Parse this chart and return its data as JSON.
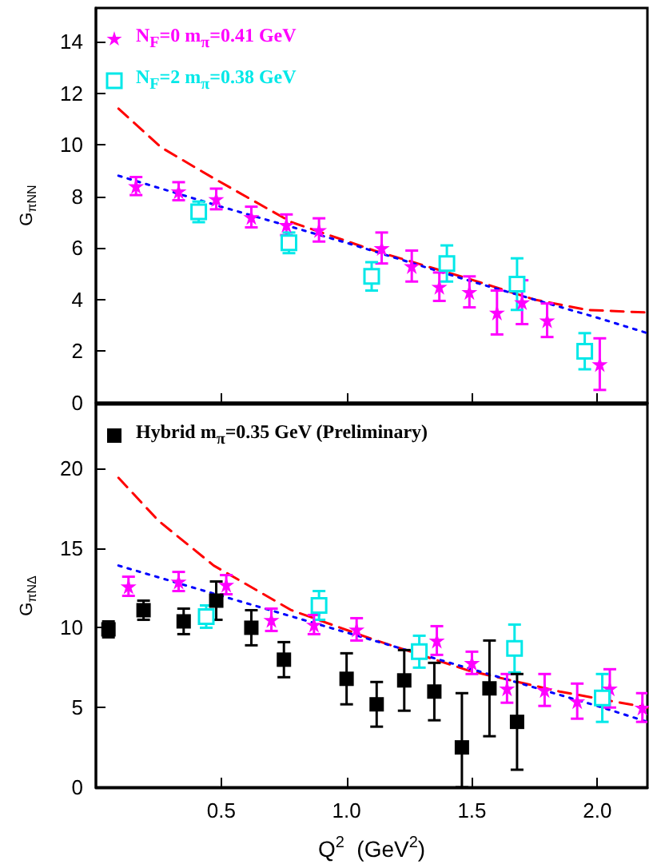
{
  "chart_data": [
    {
      "type": "scatter",
      "ylabel": "G$_{πNN}$",
      "xlim": [
        0,
        2.2
      ],
      "ylim": [
        0,
        15.3
      ],
      "xticks": [
        0.5,
        1,
        1.5,
        2
      ],
      "yticks": [
        0,
        2,
        4,
        6,
        8,
        10,
        12,
        14
      ],
      "tick_labels": "y",
      "legend": "top left",
      "series": [
        {
          "name": "N$_{F}$=0  m$_{π}$=0.41 GeV",
          "type": "scatter",
          "marker": "star",
          "color": "#ff00ff",
          "x": [
            0.16,
            0.33,
            0.48,
            0.62,
            0.76,
            0.89,
            1.14,
            1.26,
            1.37,
            1.49,
            1.6,
            1.7,
            1.8,
            2.01
          ],
          "values": [
            8.4,
            8.2,
            7.9,
            7.2,
            6.9,
            6.7,
            6.0,
            5.3,
            4.5,
            4.3,
            3.5,
            3.9,
            3.2,
            1.5
          ],
          "errors": [
            0.35,
            0.35,
            0.4,
            0.4,
            0.4,
            0.45,
            0.6,
            0.6,
            0.55,
            0.6,
            0.85,
            0.85,
            0.65,
            1.0
          ]
        },
        {
          "name": "N$_{F}$=2  m$_{π}$=0.38 GeV",
          "type": "scatter",
          "marker": "square",
          "color": "#00e8e8",
          "x": [
            0.41,
            0.77,
            1.1,
            1.4,
            1.68,
            1.95
          ],
          "values": [
            7.4,
            6.2,
            4.9,
            5.4,
            4.6,
            2.0
          ],
          "errors": [
            0.4,
            0.4,
            0.55,
            0.7,
            1.0,
            0.7
          ]
        },
        {
          "type": "line",
          "line_style": "dashed",
          "color": "#ff0000",
          "x": [
            0.09,
            0.26,
            0.47,
            0.78,
            1.11,
            1.49,
            1.75,
            1.96,
            2.2
          ],
          "values": [
            11.4,
            9.9,
            8.7,
            7.0,
            5.9,
            4.8,
            4.0,
            3.6,
            3.5
          ]
        },
        {
          "type": "line",
          "line_style": "dotted",
          "color": "#0000ff",
          "x": [
            0.09,
            0.5,
            1.0,
            1.5,
            2.0,
            2.2
          ],
          "values": [
            8.8,
            7.6,
            6.2,
            4.7,
            3.3,
            2.7
          ]
        }
      ]
    },
    {
      "type": "scatter",
      "xlabel": "Q$^{2}$  (GeV$^{2}$)",
      "ylabel": "G$_{πNΔ}$",
      "xlim": [
        0,
        2.2
      ],
      "ylim": [
        0,
        24
      ],
      "xticks": [
        0.5,
        {
          "value": 1,
          "label": "1.0"
        },
        1.5,
        {
          "value": 2,
          "label": "2.0"
        }
      ],
      "yticks": [
        0,
        5,
        10,
        15,
        20
      ],
      "legend": "top left",
      "series": [
        {
          "type": "scatter",
          "marker": "star",
          "color": "#ff00ff",
          "x": [
            0.13,
            0.33,
            0.52,
            0.7,
            0.87,
            1.04,
            1.36,
            1.5,
            1.64,
            1.79,
            1.92,
            2.05,
            2.18
          ],
          "values": [
            12.6,
            12.9,
            12.7,
            10.5,
            10.2,
            9.9,
            9.2,
            7.8,
            6.2,
            6.1,
            5.4,
            6.2,
            5.0
          ],
          "errors": [
            0.6,
            0.6,
            0.6,
            0.7,
            0.6,
            0.7,
            0.9,
            0.7,
            0.9,
            1.0,
            1.1,
            1.2,
            0.9
          ]
        },
        {
          "type": "scatter",
          "marker": "square",
          "color": "#00e8e8",
          "x": [
            0.44,
            0.89,
            1.29,
            1.67,
            2.02
          ],
          "values": [
            10.7,
            11.4,
            8.5,
            8.7,
            5.6
          ],
          "errors": [
            0.7,
            0.9,
            1.0,
            1.5,
            1.5
          ]
        },
        {
          "name": "Hybrid  m$_{π}$=0.35 GeV  (Preliminary)",
          "type": "scatter",
          "marker": "square",
          "color": "#000000",
          "x": [
            0.05,
            0.19,
            0.35,
            0.48,
            0.62,
            0.75,
            1.0,
            1.12,
            1.23,
            1.35,
            1.46,
            1.57,
            1.68
          ],
          "values": [
            9.9,
            11.1,
            10.4,
            11.7,
            10.0,
            8.0,
            6.8,
            5.2,
            6.7,
            6.0,
            2.5,
            6.2,
            4.1
          ],
          "errors": [
            0.5,
            0.6,
            0.8,
            1.2,
            1.1,
            1.1,
            1.6,
            1.4,
            1.9,
            1.8,
            [
              0,
              5.9
            ],
            3.0,
            3.0
          ]
        },
        {
          "type": "line",
          "line_style": "dashed",
          "color": "#ff0000",
          "x": [
            0.09,
            0.25,
            0.47,
            0.78,
            1.1,
            1.49,
            1.85,
            2.2
          ],
          "values": [
            19.4,
            16.7,
            13.9,
            11.1,
            9.3,
            7.3,
            6.0,
            5.0
          ]
        },
        {
          "type": "line",
          "line_style": "dotted",
          "color": "#0000ff",
          "x": [
            0.09,
            0.5,
            1.0,
            1.5,
            2.0,
            2.2
          ],
          "values": [
            13.9,
            12.0,
            9.7,
            7.4,
            5.1,
            4.1
          ]
        }
      ]
    }
  ]
}
